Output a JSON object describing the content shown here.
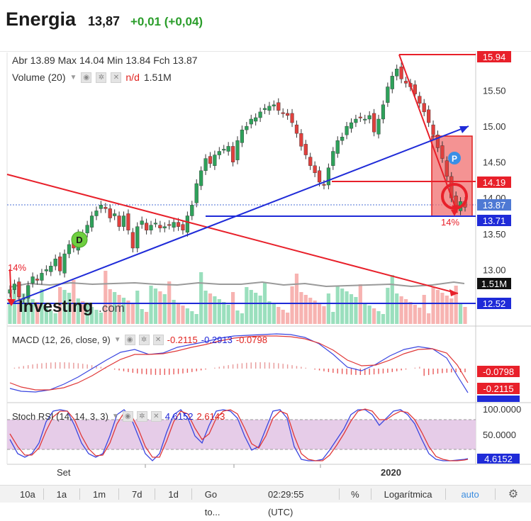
{
  "header": {
    "title": "Energia",
    "price": "13,87",
    "change": "+0,01 (+0,04)"
  },
  "info": {
    "open": "Abr 13.89",
    "max": "Max 14.04",
    "min": "Min 13.84",
    "close": "Fch 13.87"
  },
  "volume": {
    "label": "Volume (20)",
    "nd": "n/d",
    "value": "1.51M"
  },
  "macd": {
    "label": "MACD (12, 26, close, 9)",
    "v1": "-0.2115",
    "v2": "-0.2913",
    "v3": "-0.0798"
  },
  "stoch": {
    "label": "Stoch RSI (14, 14, 3, 3)",
    "v1": "4.6152",
    "v2": "2.6143"
  },
  "colors": {
    "up": "#2ea15a",
    "down": "#e0403d",
    "accent_red": "#e8202a",
    "accent_blue": "#1f2bd8",
    "vol_up": "#9adfbd",
    "vol_down": "#f7b3b1"
  },
  "price_tags": [
    "15.94",
    "14.19",
    "13.87",
    "13.71",
    "12.52"
  ],
  "vol_tag": "1.51M",
  "annotations": {
    "pct_left": "14%",
    "pct_right": "14%",
    "d_marker": "D",
    "p_marker": "P",
    "watermark": "Investing",
    "watermark_suffix": ".com"
  },
  "x_labels": [
    "Set",
    "2020"
  ],
  "macd_tags": [
    "-0.0798",
    "-0.2115"
  ],
  "stoch_ticks": [
    "100.0000",
    "50.0000"
  ],
  "stoch_tag": "4.6152",
  "toolbar": {
    "items": [
      "10a",
      "1a",
      "1m",
      "7d",
      "1d",
      "Go to...",
      "02:29:55 (UTC)",
      "%",
      "Logarítmica",
      "auto"
    ],
    "settings_icon": "gear-icon"
  },
  "chart_data": [
    {
      "type": "candlestick",
      "title": "Energia",
      "y_ticks": [
        "15.50",
        "15.00",
        "14.50",
        "14.00",
        "13.50",
        "13.00"
      ],
      "ylim": [
        12.4,
        16.0
      ],
      "last": 13.87,
      "open": 13.89,
      "high": 14.04,
      "low": 13.84,
      "close": 13.87,
      "closes": [
        12.72,
        12.8,
        12.62,
        12.6,
        12.78,
        12.9,
        12.85,
        12.95,
        13.0,
        13.05,
        13.15,
        12.98,
        13.22,
        13.35,
        13.3,
        13.5,
        13.48,
        13.62,
        13.75,
        13.82,
        13.9,
        13.85,
        13.72,
        13.78,
        13.6,
        13.75,
        13.55,
        13.3,
        13.6,
        13.68,
        13.55,
        13.62,
        13.65,
        13.58,
        13.6,
        13.62,
        13.66,
        13.6,
        13.55,
        13.75,
        13.9,
        14.2,
        14.38,
        14.55,
        14.48,
        14.6,
        14.65,
        14.68,
        14.72,
        14.5,
        14.8,
        14.95,
        15.0,
        15.1,
        15.12,
        15.2,
        15.25,
        15.28,
        15.3,
        15.22,
        15.18,
        15.15,
        15.05,
        14.9,
        14.72,
        14.6,
        14.45,
        14.35,
        14.22,
        14.18,
        14.42,
        14.65,
        14.8,
        14.85,
        15.0,
        15.05,
        15.1,
        15.12,
        15.1,
        15.15,
        14.92,
        15.1,
        15.3,
        15.55,
        15.7,
        15.8,
        15.66,
        15.6,
        15.55,
        15.45,
        15.32,
        15.2,
        15.05,
        14.88,
        14.7,
        14.55,
        14.3,
        14.0,
        13.85,
        13.95,
        13.87
      ]
    },
    {
      "type": "bar",
      "title": "Volume (20)",
      "last": "1.51M"
    },
    {
      "type": "line",
      "title": "MACD (12, 26, close, 9)",
      "series": [
        {
          "name": "MACD",
          "last": -0.2115
        },
        {
          "name": "Signal",
          "last": -0.2913
        },
        {
          "name": "Histogram",
          "last": -0.0798
        }
      ]
    },
    {
      "type": "line",
      "title": "Stoch RSI (14, 14, 3, 3)",
      "ylim": [
        0,
        100
      ],
      "series": [
        {
          "name": "K",
          "last": 4.6152
        },
        {
          "name": "D",
          "last": 2.6143
        }
      ]
    }
  ]
}
